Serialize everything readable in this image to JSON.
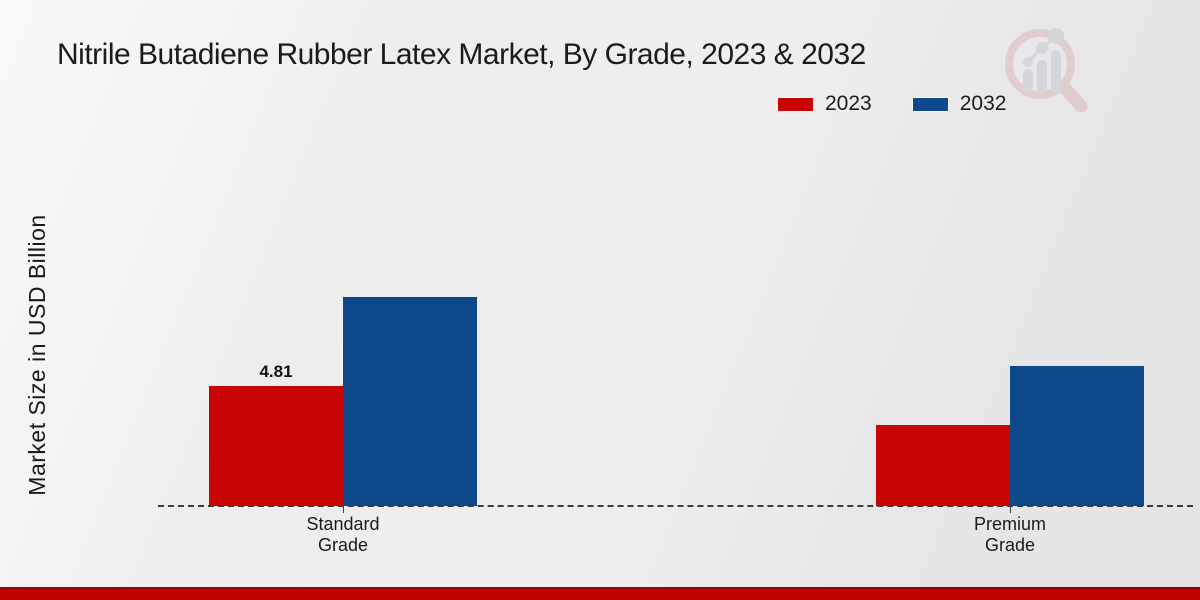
{
  "title": "Nitrile Butadiene Rubber Latex Market, By Grade, 2023 & 2032",
  "y_axis_label": "Market Size in USD Billion",
  "legend": {
    "position": "top-right",
    "items": [
      {
        "label": "2023",
        "color": "#c80404"
      },
      {
        "label": "2032",
        "color": "#0d488a"
      }
    ]
  },
  "watermark_icon": "magnifier-bar-chart-logo",
  "footer_bar_color": "#c00202",
  "chart_data": {
    "type": "bar",
    "title": "Nitrile Butadiene Rubber Latex Market, By Grade, 2023 & 2032",
    "categories": [
      "Standard Grade",
      "Premium Grade"
    ],
    "series": [
      {
        "name": "2023",
        "color": "#c80404",
        "values": [
          4.81,
          3.25
        ],
        "data_labels": [
          "4.81",
          ""
        ]
      },
      {
        "name": "2032",
        "color": "#0d488a",
        "values": [
          8.38,
          5.61
        ],
        "data_labels": [
          "",
          ""
        ]
      }
    ],
    "xlabel": "",
    "ylabel": "Market Size in USD Billion",
    "ylim": [
      0,
      10
    ],
    "grid": false,
    "legend_position": "top-right",
    "baseline_style": "dashed"
  }
}
